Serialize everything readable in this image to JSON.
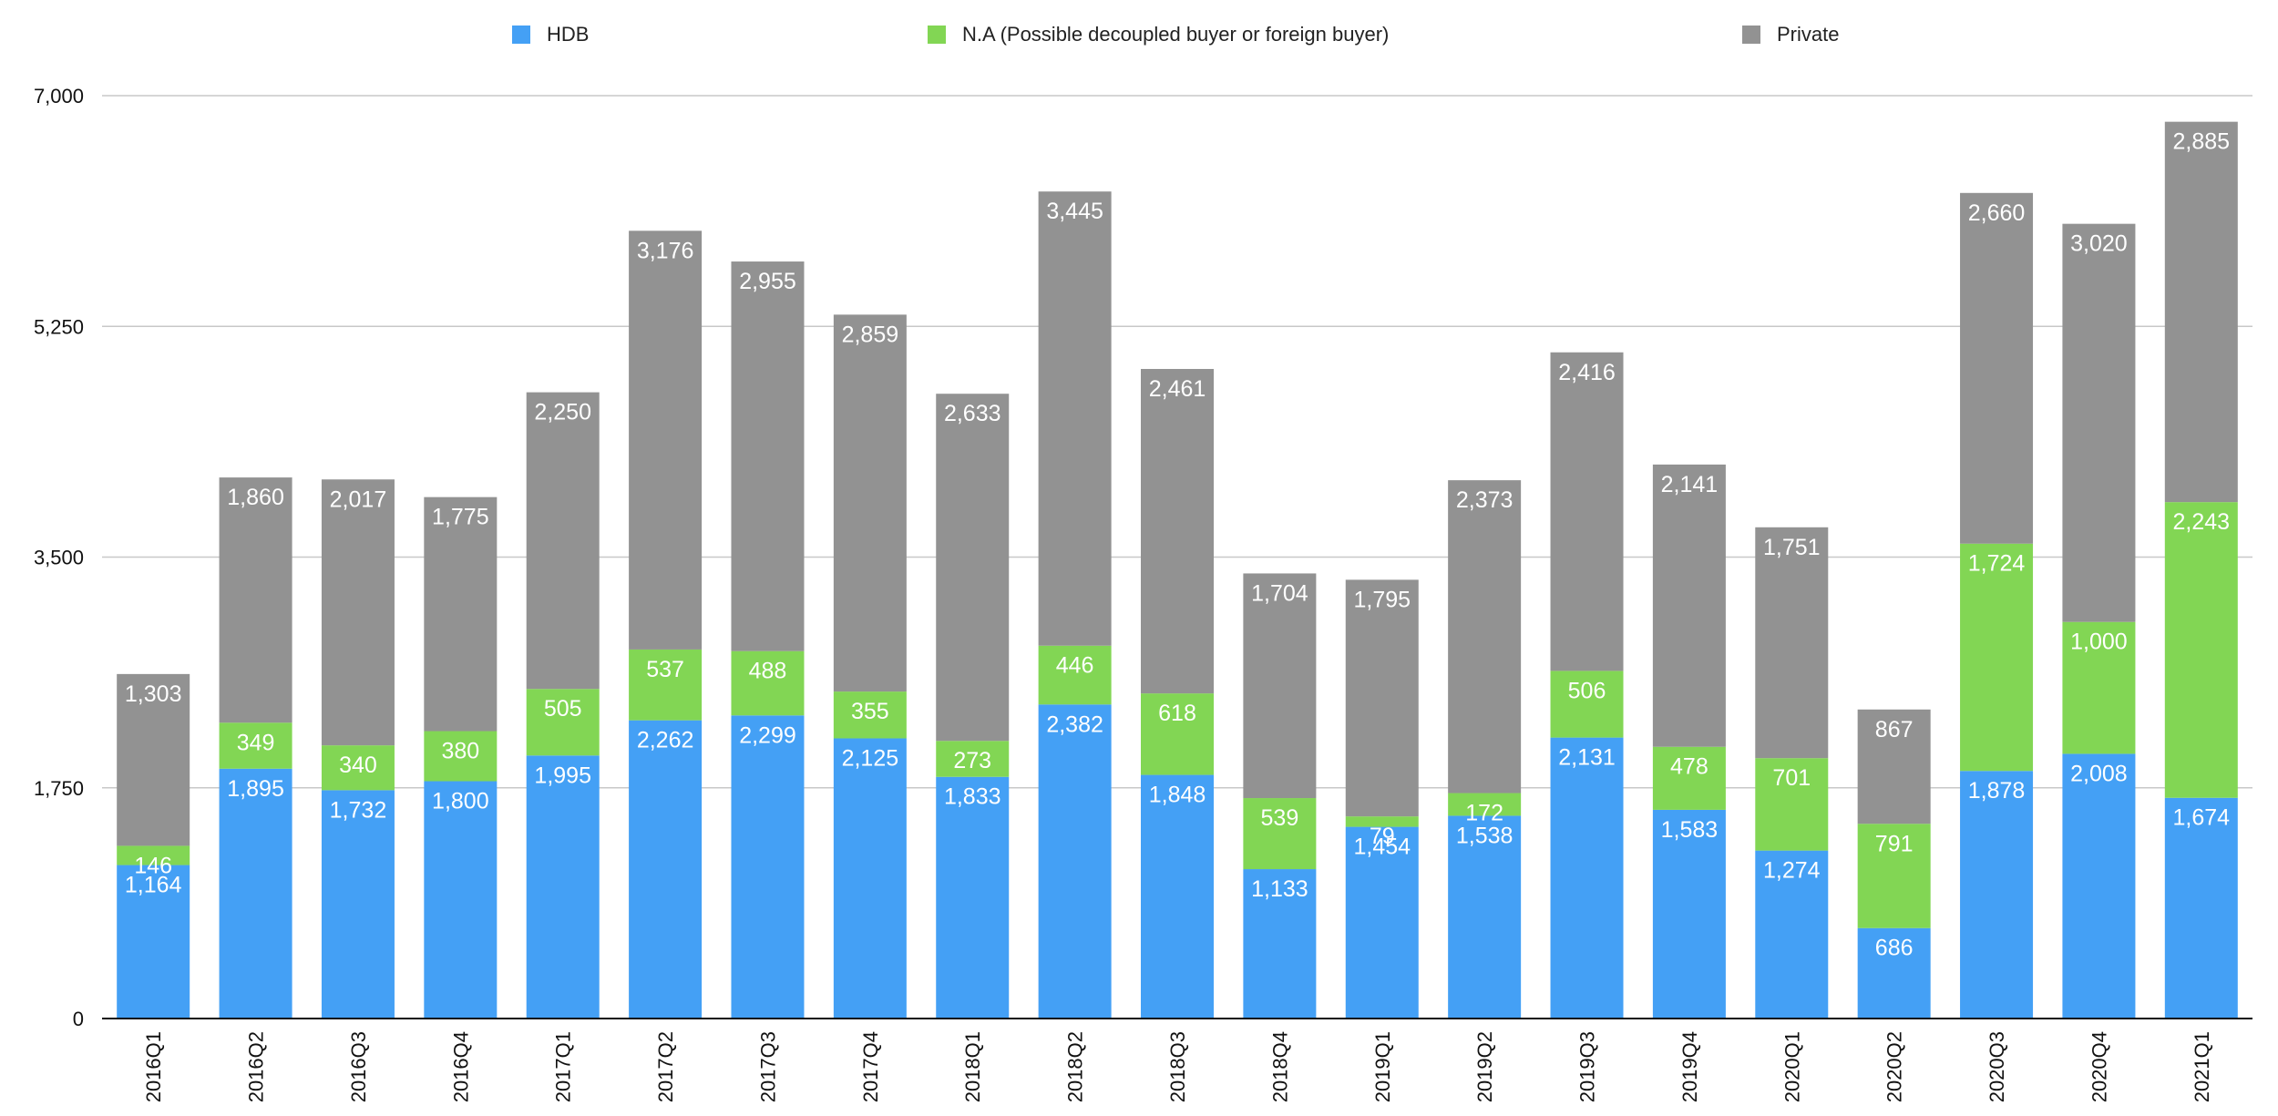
{
  "chart_data": {
    "type": "bar",
    "stacked": true,
    "title": "",
    "xlabel": "",
    "ylabel": "",
    "ylim": [
      0,
      7000
    ],
    "yticks": [
      0,
      1750,
      3500,
      5250,
      7000
    ],
    "ytick_labels": [
      "0",
      "1,750",
      "3,500",
      "5,250",
      "7,000"
    ],
    "grid": true,
    "legend_position": "top",
    "categories": [
      "2016Q1",
      "2016Q2",
      "2016Q3",
      "2016Q4",
      "2017Q1",
      "2017Q2",
      "2017Q3",
      "2017Q4",
      "2018Q1",
      "2018Q2",
      "2018Q3",
      "2018Q4",
      "2019Q1",
      "2019Q2",
      "2019Q3",
      "2019Q4",
      "2020Q1",
      "2020Q2",
      "2020Q3",
      "2020Q4",
      "2021Q1"
    ],
    "series": [
      {
        "name": "HDB",
        "color": "#44a0f5",
        "values": [
          1164,
          1895,
          1732,
          1800,
          1995,
          2262,
          2299,
          2125,
          1833,
          2382,
          1848,
          1133,
          1454,
          1538,
          2131,
          1583,
          1274,
          686,
          1878,
          2008,
          1674
        ]
      },
      {
        "name": "N.A (Possible decoupled buyer or foreign buyer)",
        "color": "#82d654",
        "values": [
          146,
          349,
          340,
          380,
          505,
          537,
          488,
          355,
          273,
          446,
          618,
          539,
          79,
          172,
          506,
          478,
          701,
          791,
          1724,
          1000,
          2243
        ]
      },
      {
        "name": "Private",
        "color": "#929292",
        "values": [
          1303,
          1860,
          2017,
          1775,
          2250,
          3176,
          2955,
          2859,
          2633,
          3445,
          2461,
          1704,
          1795,
          2373,
          2416,
          2141,
          1751,
          867,
          2660,
          3020,
          2885
        ]
      }
    ]
  }
}
